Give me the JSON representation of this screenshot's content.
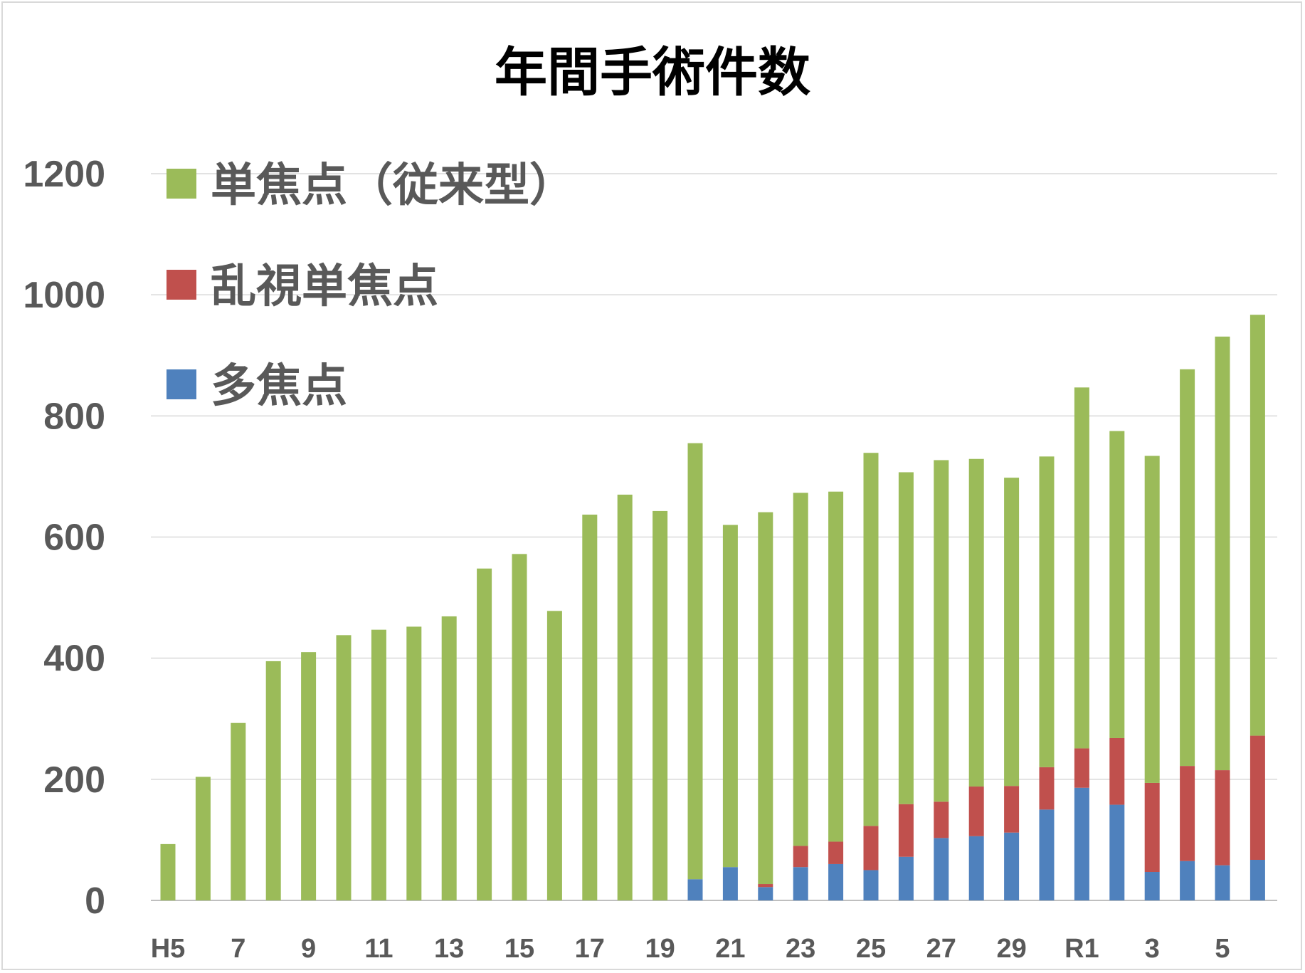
{
  "chart_data": {
    "type": "bar",
    "stacked": true,
    "title": "年間手術件数",
    "xlabel": "",
    "ylabel": "",
    "ylim": [
      0,
      1200
    ],
    "yticks": [
      0,
      200,
      400,
      600,
      800,
      1000,
      1200
    ],
    "grid": true,
    "legend_position": "top-left",
    "categories": [
      "H5",
      "6",
      "7",
      "8",
      "9",
      "10",
      "11",
      "12",
      "13",
      "14",
      "15",
      "16",
      "17",
      "18",
      "19",
      "20",
      "21",
      "22",
      "23",
      "24",
      "25",
      "26",
      "27",
      "28",
      "29",
      "30",
      "R1",
      "2",
      "3",
      "4",
      "5",
      "6"
    ],
    "tick_labels_shown": [
      "H5",
      "",
      "7",
      "",
      "9",
      "",
      "11",
      "",
      "13",
      "",
      "15",
      "",
      "17",
      "",
      "19",
      "",
      "21",
      "",
      "23",
      "",
      "25",
      "",
      "27",
      "",
      "29",
      "",
      "R1",
      "",
      "3",
      "",
      "5",
      ""
    ],
    "series": [
      {
        "name": "多焦点",
        "color": "#4f81bd",
        "values": [
          0,
          0,
          0,
          0,
          0,
          0,
          0,
          0,
          0,
          0,
          0,
          0,
          0,
          0,
          0,
          35,
          55,
          22,
          55,
          60,
          50,
          72,
          103,
          106,
          112,
          150,
          186,
          158,
          47,
          65,
          58,
          67
        ]
      },
      {
        "name": "乱視単焦点",
        "color": "#c0504d",
        "values": [
          0,
          0,
          0,
          0,
          0,
          0,
          0,
          0,
          0,
          0,
          0,
          0,
          0,
          0,
          0,
          0,
          0,
          5,
          35,
          37,
          73,
          87,
          60,
          82,
          77,
          70,
          65,
          110,
          147,
          157,
          157,
          205
        ]
      },
      {
        "name": "単焦点（従来型）",
        "color": "#9bbb59",
        "values": [
          93,
          204,
          293,
          395,
          410,
          438,
          447,
          452,
          469,
          548,
          572,
          478,
          637,
          670,
          643,
          720,
          565,
          614,
          583,
          578,
          616,
          548,
          564,
          541,
          509,
          513,
          596,
          507,
          540,
          655,
          716,
          695
        ]
      }
    ],
    "legend_order": [
      "単焦点（従来型）",
      "乱視単焦点",
      "多焦点"
    ]
  }
}
